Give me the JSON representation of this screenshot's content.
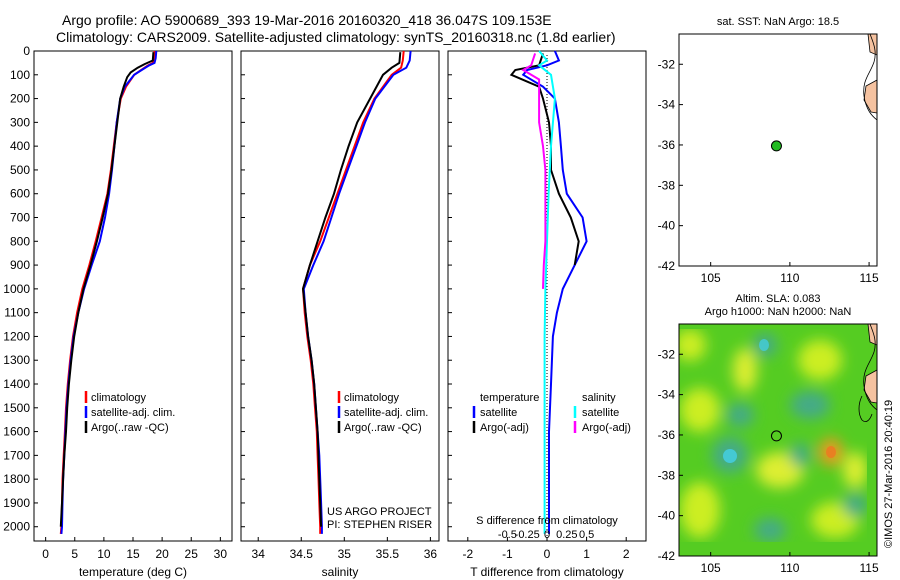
{
  "title_line1": "Argo profile: AO 5900689_393 19-Mar-2016 20160320_418 36.047S 109.153E",
  "title_line2": "Climatology: CARS2009. Satellite-adjusted climatology: synTS_20160318.nc (1.8d earlier)",
  "map1_title": "sat. SST: NaN Argo: 18.5",
  "map2_title_line1": "Altim. SLA: 0.083",
  "map2_title_line2": "Argo h1000: NaN h2000: NaN",
  "project_line1": "US ARGO PROJECT",
  "project_line2": "PI: STEPHEN RISER",
  "timestamp": "©IMOS 27-Mar-2016 20:40:19",
  "colors": {
    "climatology": "#ff0000",
    "satellite": "#0000ff",
    "argo": "#000000",
    "sat_salinity": "#00ffff",
    "argo_salinity": "#ff00ff",
    "float_marker": "#22bb22",
    "land": "#f5c2a0"
  },
  "chart_data": [
    {
      "type": "line",
      "name": "temperature-profile",
      "xlabel": "temperature (deg C)",
      "ylabel": "",
      "xlim": [
        -2,
        32
      ],
      "ylim": [
        2060,
        0
      ],
      "xticks": [
        0,
        5,
        10,
        15,
        20,
        25,
        30
      ],
      "yticks": [
        0,
        100,
        200,
        300,
        400,
        500,
        600,
        700,
        800,
        900,
        1000,
        1100,
        1200,
        1300,
        1400,
        1500,
        1600,
        1700,
        1800,
        1900,
        2000
      ],
      "legend": [
        "climatology",
        "satellite-adj. clim.",
        "Argo(..raw -QC)"
      ],
      "series": [
        {
          "name": "climatology",
          "color": "#ff0000",
          "points": [
            [
              18.7,
              0
            ],
            [
              18.6,
              30
            ],
            [
              18.4,
              50
            ],
            [
              17.6,
              60
            ],
            [
              16.4,
              80
            ],
            [
              15.2,
              100
            ],
            [
              13.8,
              150
            ],
            [
              12.9,
              200
            ],
            [
              12.2,
              300
            ],
            [
              11.7,
              400
            ],
            [
              11.2,
              500
            ],
            [
              10.6,
              600
            ],
            [
              9.6,
              700
            ],
            [
              8.6,
              800
            ],
            [
              7.5,
              900
            ],
            [
              6.3,
              1000
            ],
            [
              5.4,
              1100
            ],
            [
              4.7,
              1200
            ],
            [
              4.2,
              1300
            ],
            [
              3.8,
              1400
            ],
            [
              3.5,
              1500
            ],
            [
              3.3,
              1600
            ],
            [
              3.1,
              1700
            ],
            [
              2.9,
              1800
            ],
            [
              2.8,
              1900
            ],
            [
              2.7,
              2000
            ],
            [
              2.6,
              2030
            ]
          ]
        },
        {
          "name": "satellite-adj. clim.",
          "color": "#0000ff",
          "points": [
            [
              19.0,
              0
            ],
            [
              18.9,
              30
            ],
            [
              18.7,
              50
            ],
            [
              17.8,
              60
            ],
            [
              16.5,
              80
            ],
            [
              15.2,
              100
            ],
            [
              13.6,
              150
            ],
            [
              12.8,
              200
            ],
            [
              12.2,
              300
            ],
            [
              11.8,
              400
            ],
            [
              11.4,
              500
            ],
            [
              10.9,
              600
            ],
            [
              10.2,
              700
            ],
            [
              9.3,
              800
            ],
            [
              7.9,
              900
            ],
            [
              6.6,
              1000
            ],
            [
              5.6,
              1100
            ],
            [
              4.8,
              1200
            ],
            [
              4.3,
              1300
            ],
            [
              3.9,
              1400
            ],
            [
              3.6,
              1500
            ],
            [
              3.4,
              1600
            ],
            [
              3.2,
              1700
            ],
            [
              3.0,
              1800
            ],
            [
              2.9,
              1900
            ],
            [
              2.8,
              2000
            ],
            [
              2.7,
              2030
            ]
          ]
        },
        {
          "name": "Argo(..raw -QC)",
          "color": "#000000",
          "points": [
            [
              18.5,
              5
            ],
            [
              18.4,
              40
            ],
            [
              17.0,
              55
            ],
            [
              15.8,
              70
            ],
            [
              14.6,
              90
            ],
            [
              14.0,
              110
            ],
            [
              13.4,
              150
            ],
            [
              12.8,
              200
            ],
            [
              12.3,
              300
            ],
            [
              11.8,
              400
            ],
            [
              11.3,
              500
            ],
            [
              10.7,
              600
            ],
            [
              9.8,
              700
            ],
            [
              8.8,
              800
            ],
            [
              7.7,
              900
            ],
            [
              6.5,
              1000
            ],
            [
              5.6,
              1100
            ],
            [
              4.9,
              1200
            ],
            [
              4.4,
              1300
            ],
            [
              4.0,
              1400
            ],
            [
              3.7,
              1500
            ],
            [
              3.5,
              1600
            ],
            [
              3.2,
              1700
            ],
            [
              3.0,
              1800
            ],
            [
              2.8,
              1900
            ],
            [
              2.6,
              2000
            ]
          ]
        }
      ]
    },
    {
      "type": "line",
      "name": "salinity-profile",
      "xlabel": "salinity",
      "ylabel": "",
      "xlim": [
        33.8,
        36.1
      ],
      "ylim": [
        2060,
        0
      ],
      "xticks": [
        34,
        34.5,
        35,
        35.5,
        36
      ],
      "xticklabels": [
        "34",
        "34.5",
        "35",
        "35.5",
        "36"
      ],
      "legend": [
        "climatology",
        "satellite-adj. clim.",
        "Argo(..raw -QC)"
      ],
      "series": [
        {
          "name": "climatology",
          "color": "#ff0000",
          "points": [
            [
              35.69,
              0
            ],
            [
              35.68,
              40
            ],
            [
              35.66,
              70
            ],
            [
              35.55,
              100
            ],
            [
              35.35,
              200
            ],
            [
              35.22,
              300
            ],
            [
              35.12,
              400
            ],
            [
              35.02,
              500
            ],
            [
              34.92,
              600
            ],
            [
              34.82,
              700
            ],
            [
              34.72,
              800
            ],
            [
              34.6,
              900
            ],
            [
              34.52,
              1000
            ],
            [
              34.54,
              1100
            ],
            [
              34.57,
              1200
            ],
            [
              34.61,
              1300
            ],
            [
              34.64,
              1400
            ],
            [
              34.66,
              1500
            ],
            [
              34.68,
              1600
            ],
            [
              34.69,
              1700
            ],
            [
              34.7,
              1800
            ],
            [
              34.71,
              1900
            ],
            [
              34.72,
              2000
            ],
            [
              34.72,
              2030
            ]
          ]
        },
        {
          "name": "satellite-adj. clim.",
          "color": "#0000ff",
          "points": [
            [
              35.77,
              0
            ],
            [
              35.76,
              40
            ],
            [
              35.72,
              70
            ],
            [
              35.57,
              100
            ],
            [
              35.36,
              200
            ],
            [
              35.24,
              300
            ],
            [
              35.14,
              400
            ],
            [
              35.04,
              500
            ],
            [
              34.94,
              600
            ],
            [
              34.85,
              700
            ],
            [
              34.76,
              800
            ],
            [
              34.64,
              900
            ],
            [
              34.53,
              1000
            ],
            [
              34.55,
              1100
            ],
            [
              34.58,
              1200
            ],
            [
              34.62,
              1300
            ],
            [
              34.65,
              1400
            ],
            [
              34.67,
              1500
            ],
            [
              34.69,
              1600
            ],
            [
              34.71,
              1700
            ],
            [
              34.72,
              1800
            ],
            [
              34.73,
              1900
            ],
            [
              34.74,
              2000
            ],
            [
              34.74,
              2030
            ]
          ]
        },
        {
          "name": "Argo(..raw -QC)",
          "color": "#000000",
          "points": [
            [
              35.65,
              5
            ],
            [
              35.64,
              50
            ],
            [
              35.55,
              70
            ],
            [
              35.45,
              100
            ],
            [
              35.3,
              200
            ],
            [
              35.15,
              300
            ],
            [
              35.05,
              400
            ],
            [
              34.96,
              500
            ],
            [
              34.88,
              600
            ],
            [
              34.78,
              700
            ],
            [
              34.69,
              800
            ],
            [
              34.6,
              900
            ],
            [
              34.52,
              1000
            ],
            [
              34.55,
              1100
            ],
            [
              34.58,
              1200
            ],
            [
              34.62,
              1300
            ],
            [
              34.65,
              1400
            ],
            [
              34.67,
              1500
            ],
            [
              34.69,
              1600
            ],
            [
              34.7,
              1700
            ],
            [
              34.71,
              1800
            ],
            [
              34.72,
              1900
            ],
            [
              34.73,
              2000
            ]
          ]
        }
      ]
    },
    {
      "type": "line",
      "name": "difference-profile",
      "xlabel": "T difference from climatology",
      "xlabel_top": "S difference from climatology",
      "xlim": [
        -2.5,
        2.5
      ],
      "ylim": [
        2060,
        0
      ],
      "xticks": [
        -2,
        -1,
        0,
        1,
        2
      ],
      "xticks_top": [
        -0.5,
        -0.25,
        0,
        0.25,
        0.5
      ],
      "xticklabels_top": [
        "-0.5",
        "-0.25",
        "0",
        "0.25",
        "0.5"
      ],
      "legend_headers": [
        "temperature",
        "salinity"
      ],
      "legend": [
        "satellite",
        "Argo(-adj)",
        "satellite",
        "Argo(-adj)"
      ],
      "series": [
        {
          "name": "satellite (temperature)",
          "color": "#0000ff",
          "points": [
            [
              0.2,
              0
            ],
            [
              0.3,
              40
            ],
            [
              0.0,
              60
            ],
            [
              -0.5,
              80
            ],
            [
              -0.6,
              100
            ],
            [
              -0.1,
              150
            ],
            [
              0.2,
              200
            ],
            [
              0.3,
              300
            ],
            [
              0.35,
              400
            ],
            [
              0.4,
              500
            ],
            [
              0.5,
              600
            ],
            [
              0.9,
              700
            ],
            [
              1.0,
              800
            ],
            [
              0.7,
              900
            ],
            [
              0.4,
              1000
            ],
            [
              0.25,
              1100
            ],
            [
              0.15,
              1200
            ],
            [
              0.1,
              1400
            ],
            [
              0.05,
              1600
            ],
            [
              0.05,
              1800
            ],
            [
              0.05,
              2000
            ],
            [
              0.05,
              2030
            ]
          ]
        },
        {
          "name": "Argo (temperature)",
          "color": "#000000",
          "points": [
            [
              -0.1,
              10
            ],
            [
              -0.2,
              60
            ],
            [
              -0.8,
              80
            ],
            [
              -0.9,
              100
            ],
            [
              -0.2,
              150
            ],
            [
              -0.1,
              200
            ],
            [
              0.05,
              300
            ],
            [
              0.1,
              400
            ],
            [
              0.1,
              500
            ],
            [
              0.3,
              600
            ],
            [
              0.6,
              700
            ],
            [
              0.8,
              800
            ],
            [
              0.7,
              900
            ]
          ]
        },
        {
          "name": "satellite (salinity)",
          "color": "#00ffff",
          "points": [
            [
              -0.1,
              0
            ],
            [
              0.0,
              40
            ],
            [
              -0.1,
              60
            ],
            [
              0.05,
              100
            ],
            [
              0.1,
              200
            ],
            [
              0.05,
              400
            ],
            [
              0.02,
              600
            ],
            [
              0.0,
              800
            ],
            [
              -0.02,
              1000
            ],
            [
              -0.03,
              1200
            ],
            [
              -0.03,
              1600
            ],
            [
              -0.03,
              2030
            ]
          ]
        },
        {
          "name": "Argo (salinity)",
          "color": "#ff00ff",
          "points": [
            [
              -0.15,
              10
            ],
            [
              -0.2,
              60
            ],
            [
              -0.3,
              80
            ],
            [
              -0.1,
              120
            ],
            [
              -0.1,
              200
            ],
            [
              -0.1,
              300
            ],
            [
              -0.05,
              400
            ],
            [
              -0.02,
              500
            ],
            [
              -0.02,
              600
            ],
            [
              -0.02,
              700
            ],
            [
              -0.02,
              800
            ],
            [
              -0.04,
              900
            ],
            [
              -0.05,
              1000
            ]
          ]
        }
      ]
    },
    {
      "type": "scatter",
      "name": "sst-map",
      "title": "sat. SST: NaN Argo: 18.5",
      "xlim": [
        103,
        115.5
      ],
      "ylim": [
        -42,
        -30.5
      ],
      "xticks": [
        105,
        110,
        115
      ],
      "yticks": [
        -32,
        -34,
        -36,
        -38,
        -40,
        -42
      ],
      "points": [
        {
          "lon": 109.153,
          "lat": -36.047
        }
      ]
    },
    {
      "type": "heatmap",
      "name": "sla-map",
      "title": "Altim. SLA: 0.083",
      "subtitle": "Argo h1000: NaN h2000: NaN",
      "xlim": [
        103,
        115.5
      ],
      "ylim": [
        -42,
        -30.5
      ],
      "xticks": [
        105,
        110,
        115
      ],
      "yticks": [
        -32,
        -34,
        -36,
        -38,
        -40,
        -42
      ],
      "points": [
        {
          "lon": 109.153,
          "lat": -36.047
        }
      ]
    }
  ]
}
